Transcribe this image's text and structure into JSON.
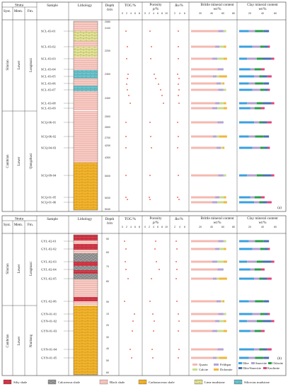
{
  "headers": {
    "strata": "Strata",
    "syst": "Syst.",
    "mem": "Mem.",
    "fm": "Fm.",
    "sample": "Sample",
    "lithology": "Lithology",
    "depth_top": "Depth",
    "depth_unit": "h/m",
    "toc": "TOC/%",
    "porosity_top": "Porosity",
    "porosity_unit": "p/%",
    "ro": "Ro/%",
    "brittle_top": "Brittle mineral content",
    "brittle_unit": "wt/%",
    "clay_top": "Clay mineral content",
    "clay_unit": "wt/%"
  },
  "scales": {
    "toc_ticks": [
      "0",
      "2",
      "4",
      "6",
      "8"
    ],
    "porosity_ticks": [
      "0",
      "2",
      "4",
      "6",
      "8",
      "10"
    ],
    "ro_ticks": [
      "2",
      "4",
      "6"
    ],
    "brittle_ticks": [
      "20",
      "40",
      "60",
      "80"
    ],
    "clay_ticks": [
      "20",
      "40",
      "60"
    ]
  },
  "colors": {
    "quartz": "#f4b8b0",
    "feldspar": "#b6a3d6",
    "calcite": "#c6dc8c",
    "dolomite": "#f2b53b",
    "illite": "#3aa0df",
    "smectite": "#b3a0cf",
    "chlorite": "#2a9d4a",
    "illite_smectite": "#4a6fb3",
    "kaolinite": "#e0457f",
    "black_shale": "#f6cbc4",
    "carbonaceous_shale": "#f4b52c",
    "silty_shale": "#d93c4c",
    "calcareous_shale": "#9c9c9c",
    "lime_mudstone": "#e6e79a",
    "siliceous_mudstone": "#6fc6cf",
    "point": "#e5463a"
  },
  "panel_a": {
    "label": "(a)",
    "syst_upper": "Silurian",
    "mem_upper": "Lower",
    "fm_upper": "Longmaxi",
    "syst_lower": "Cambrian",
    "mem_lower": "Lower",
    "fm_lower": "Qiongzhusi",
    "depth_ticks": [
      "2080",
      "2100",
      "2200",
      "2300",
      "2400",
      "2500",
      "2600",
      "2700",
      "4200",
      "4300",
      "5000",
      "5030",
      "5040"
    ],
    "samples": [
      "SCL-03-01",
      "SCL-03-02",
      "SCL-03-03",
      "SCL-03-04",
      "SCL-03-05",
      "SCL-03-06",
      "SCL-03-07",
      "SCL-03-08",
      "SCL-03-09",
      "SCQ-06-01",
      "SCQ-06-02",
      "SCQ-04-03",
      "SCQ-09-04",
      "SCQ-01-05",
      "SCQ-01-06"
    ]
  },
  "panel_b": {
    "label": "(b)",
    "syst_upper": "Silurian",
    "mem_upper": "Lower",
    "fm_upper": "Longmaxi",
    "syst_lower": "Cambrian",
    "mem_lower": "Lower",
    "fm_lower": "Niutitang",
    "depth_ticks": [
      "50",
      "60",
      "70",
      "80",
      "90",
      "10",
      "20",
      "30",
      "40",
      "50",
      "60"
    ],
    "samples": [
      "GYL-02-01",
      "GYL-02-02",
      "GYL-02-03",
      "GYL-02-04",
      "GYL-02-05",
      "GYL-02-06",
      "GYN-01-01",
      "GYN-01-02",
      "GYN-01-03",
      "GYN-01-04",
      "GYN-01-05"
    ]
  },
  "legend_b": {
    "quartz": "Quartz",
    "feldspar": "Feldspar",
    "calcite": "Calcite",
    "dolomite": "Dolomite",
    "illite": "Illite",
    "smectite": "Smectite",
    "chlorite": "Chlorite",
    "illite_smectite": "Illite/Smectite",
    "kaolinite": "Kaolinite"
  },
  "lithology_legend": [
    "Silty shale",
    "Calcareous shale",
    "Black shale",
    "Carbonaceous shale",
    "Lime mudstone",
    "Siliceous mudstone"
  ]
}
